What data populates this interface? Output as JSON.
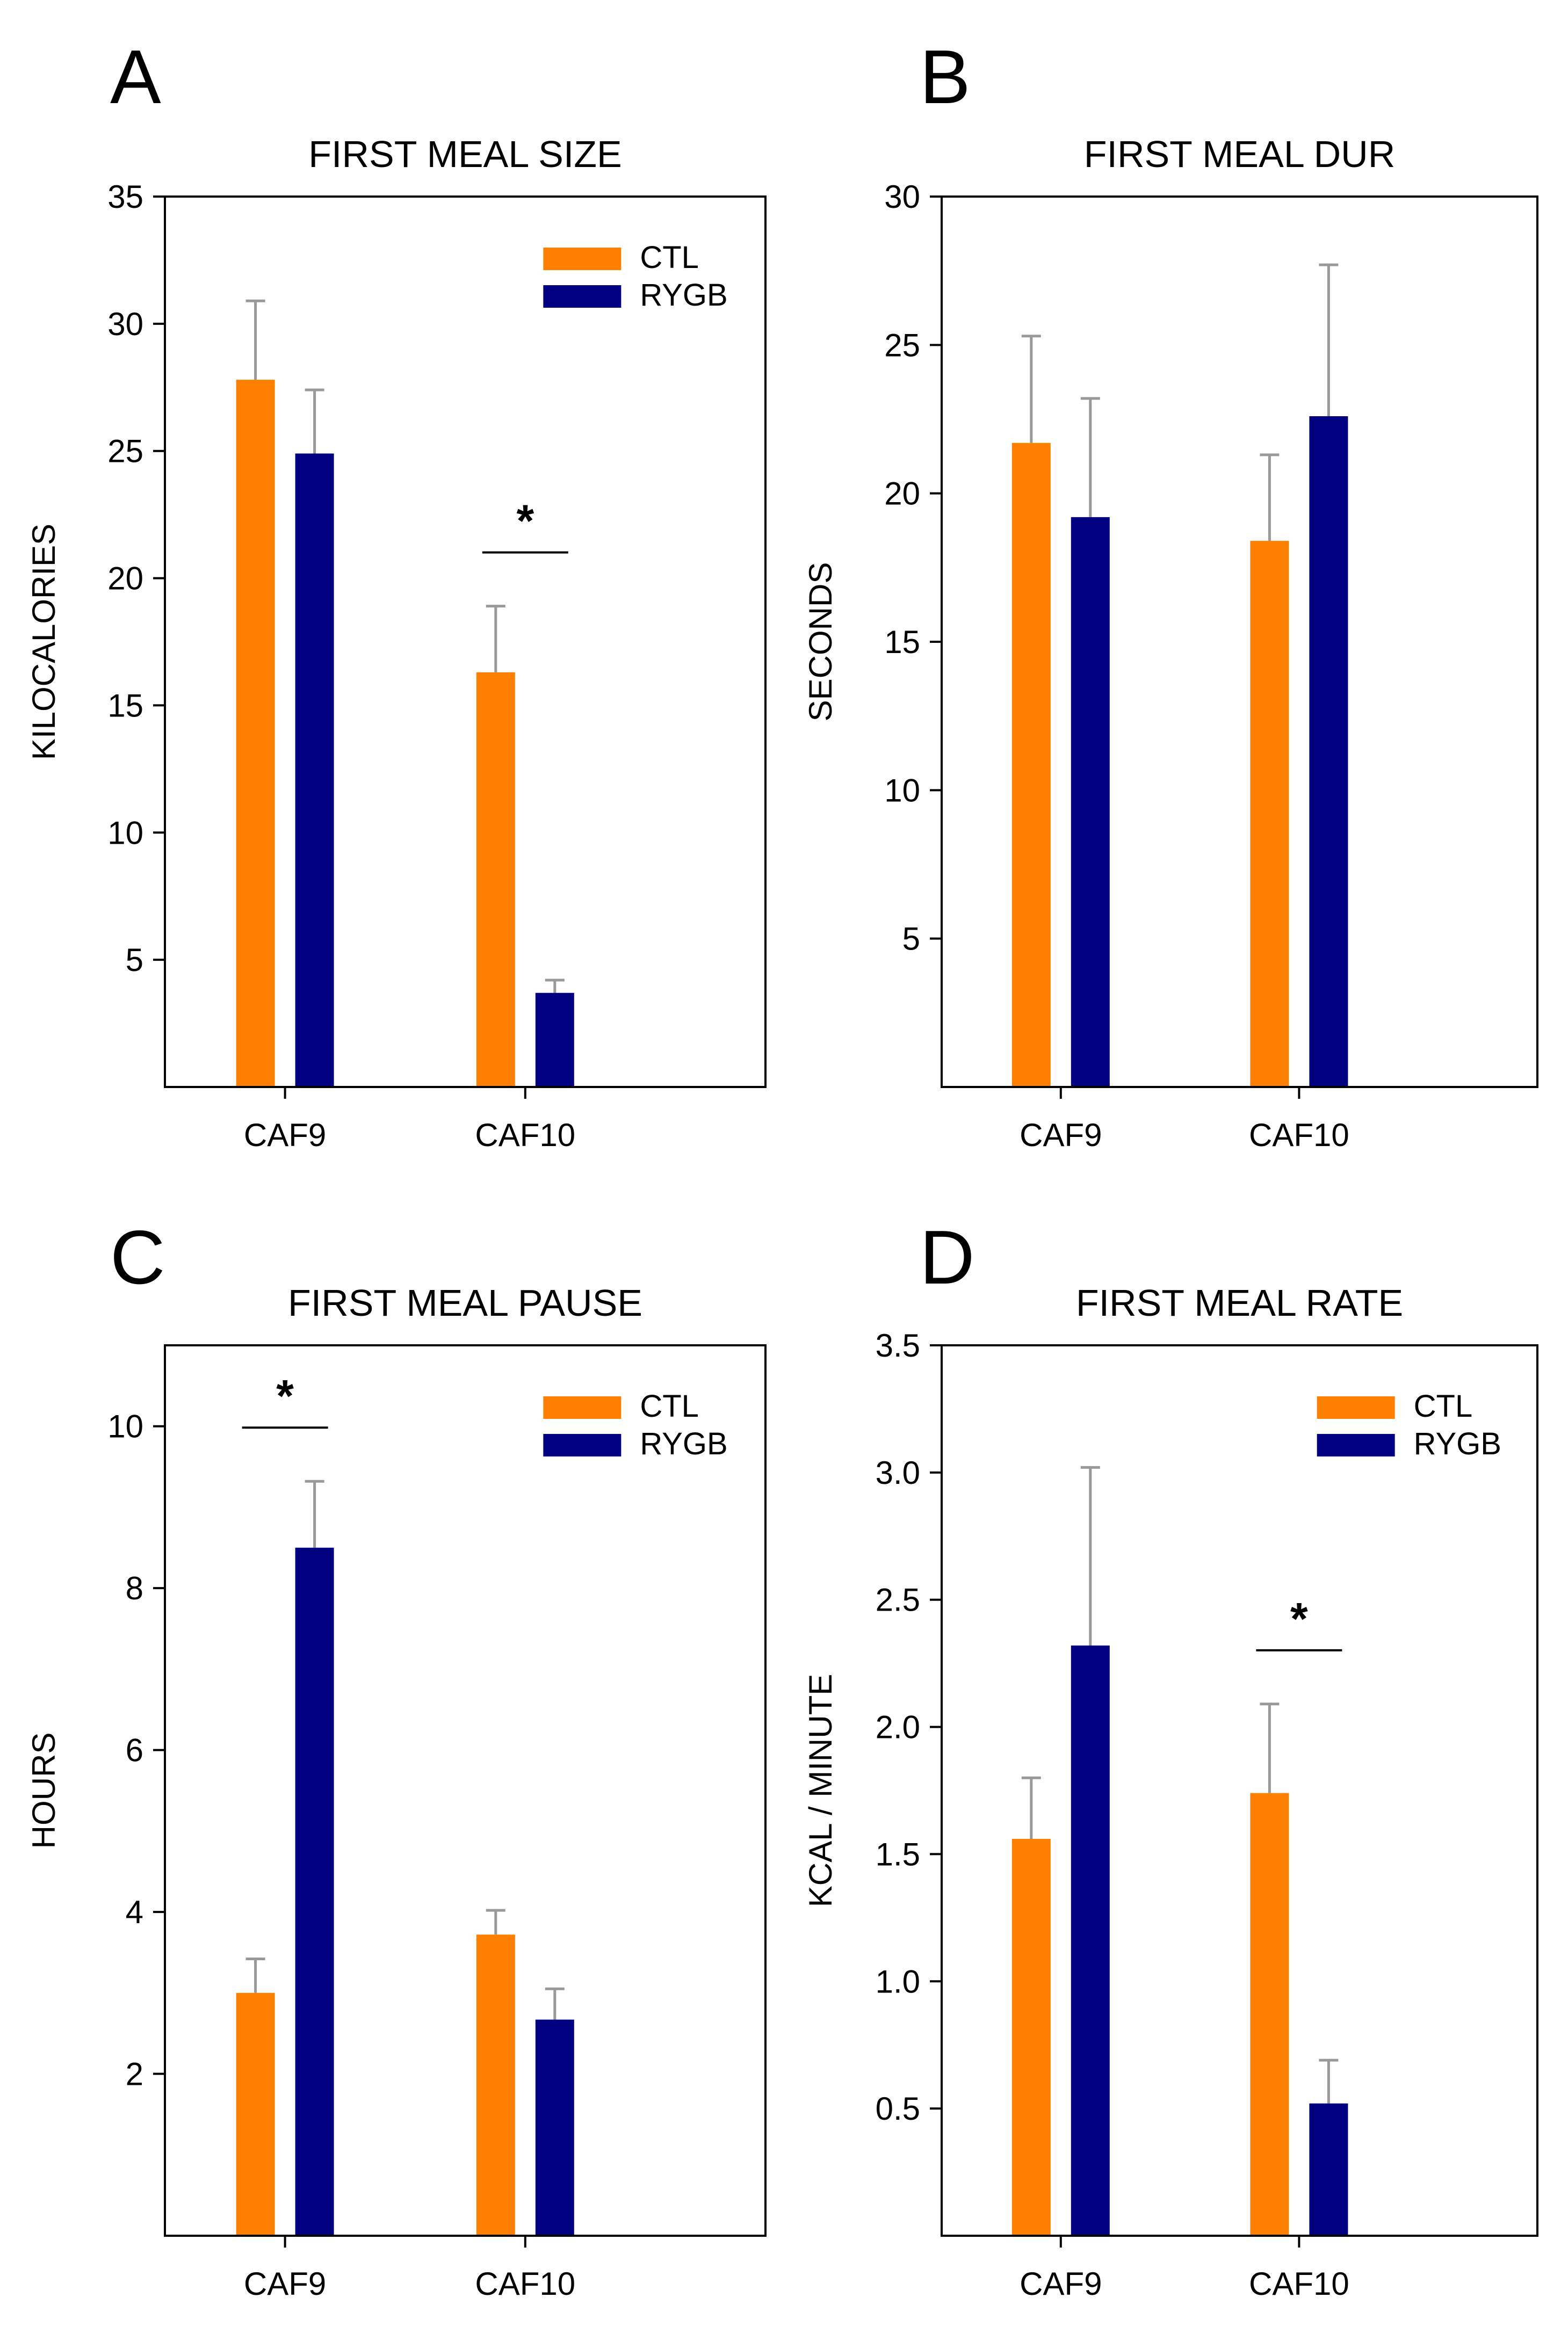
{
  "figure": {
    "colors": {
      "CTL": "#ff7f00",
      "RYGB": "#000080",
      "error_bar": "#999999",
      "axis": "#000000"
    }
  },
  "chart_data": [
    {
      "panel": "A",
      "type": "bar",
      "title": "FIRST MEAL SIZE",
      "xlabel": "",
      "ylabel": "KILOCALORIES",
      "ylim": [
        0,
        35
      ],
      "yticks": [
        5,
        10,
        15,
        20,
        25,
        30,
        35
      ],
      "yticklabels": [
        "5",
        "10",
        "15",
        "20",
        "25",
        "30",
        "35"
      ],
      "categories": [
        "CAF9",
        "CAF10"
      ],
      "series": [
        {
          "name": "CTL",
          "values": [
            27.8,
            16.3
          ],
          "errors": [
            3.1,
            2.6
          ]
        },
        {
          "name": "RYGB",
          "values": [
            24.9,
            3.7
          ],
          "errors": [
            2.5,
            0.5
          ]
        }
      ],
      "legend": {
        "show": true,
        "position": "top-right",
        "entries": [
          "CTL",
          "RYGB"
        ]
      },
      "significance": [
        {
          "category_index": 1,
          "label": "*"
        }
      ]
    },
    {
      "panel": "B",
      "type": "bar",
      "title": "FIRST MEAL DUR",
      "xlabel": "",
      "ylabel": "SECONDS",
      "ylim": [
        0,
        30
      ],
      "yticks": [
        5,
        10,
        15,
        20,
        25,
        30
      ],
      "yticklabels": [
        "5",
        "10",
        "15",
        "20",
        "25",
        "30"
      ],
      "categories": [
        "CAF9",
        "CAF10"
      ],
      "series": [
        {
          "name": "CTL",
          "values": [
            21.7,
            18.4
          ],
          "errors": [
            3.6,
            2.9
          ]
        },
        {
          "name": "RYGB",
          "values": [
            19.2,
            22.6
          ],
          "errors": [
            4.0,
            5.1
          ]
        }
      ],
      "legend": {
        "show": false
      },
      "significance": []
    },
    {
      "panel": "C",
      "type": "bar",
      "title": "FIRST MEAL PAUSE",
      "xlabel": "",
      "ylabel": "HOURS",
      "ylim": [
        0,
        11
      ],
      "yticks": [
        2,
        4,
        6,
        8,
        10
      ],
      "yticklabels": [
        "2",
        "4",
        "6",
        "8",
        "10"
      ],
      "categories": [
        "CAF9",
        "CAF10"
      ],
      "series": [
        {
          "name": "CTL",
          "values": [
            3.0,
            3.72
          ],
          "errors": [
            0.42,
            0.3
          ]
        },
        {
          "name": "RYGB",
          "values": [
            8.5,
            2.67
          ],
          "errors": [
            0.82,
            0.38
          ]
        }
      ],
      "legend": {
        "show": true,
        "position": "top-right",
        "entries": [
          "CTL",
          "RYGB"
        ]
      },
      "significance": [
        {
          "category_index": 0,
          "label": "*"
        }
      ]
    },
    {
      "panel": "D",
      "type": "bar",
      "title": "FIRST MEAL RATE",
      "xlabel": "",
      "ylabel": "KCAL / MINUTE",
      "ylim": [
        0,
        3.5
      ],
      "yticks": [
        0.5,
        1.0,
        1.5,
        2.0,
        2.5,
        3.0,
        3.5
      ],
      "yticklabels": [
        "0.5",
        "1.0",
        "1.5",
        "2.0",
        "2.5",
        "3.0",
        "3.5"
      ],
      "categories": [
        "CAF9",
        "CAF10"
      ],
      "series": [
        {
          "name": "CTL",
          "values": [
            1.56,
            1.74
          ],
          "errors": [
            0.24,
            0.35
          ]
        },
        {
          "name": "RYGB",
          "values": [
            2.32,
            0.52
          ],
          "errors": [
            0.7,
            0.17
          ]
        }
      ],
      "legend": {
        "show": true,
        "position": "top-right",
        "entries": [
          "CTL",
          "RYGB"
        ]
      },
      "significance": [
        {
          "category_index": 1,
          "label": "*"
        }
      ]
    }
  ]
}
